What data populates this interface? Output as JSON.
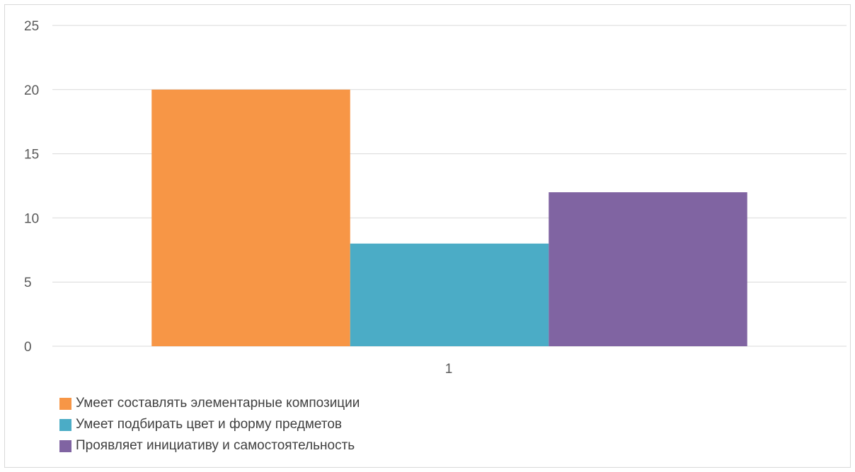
{
  "chart_data": {
    "type": "bar",
    "categories": [
      "1"
    ],
    "series": [
      {
        "name": "Умеет составлять элементарные композиции",
        "values": [
          20
        ],
        "color": "#F79646"
      },
      {
        "name": "Умеет подбирать цвет и форму предметов",
        "values": [
          8
        ],
        "color": "#4BACC6"
      },
      {
        "name": "Проявляет инициативу и самостоятельность",
        "values": [
          12
        ],
        "color": "#8064A2"
      }
    ],
    "ylim": [
      0,
      25
    ],
    "yticks": [
      0,
      5,
      10,
      15,
      20,
      25
    ],
    "grid": true,
    "legend_position": "bottom-left"
  }
}
